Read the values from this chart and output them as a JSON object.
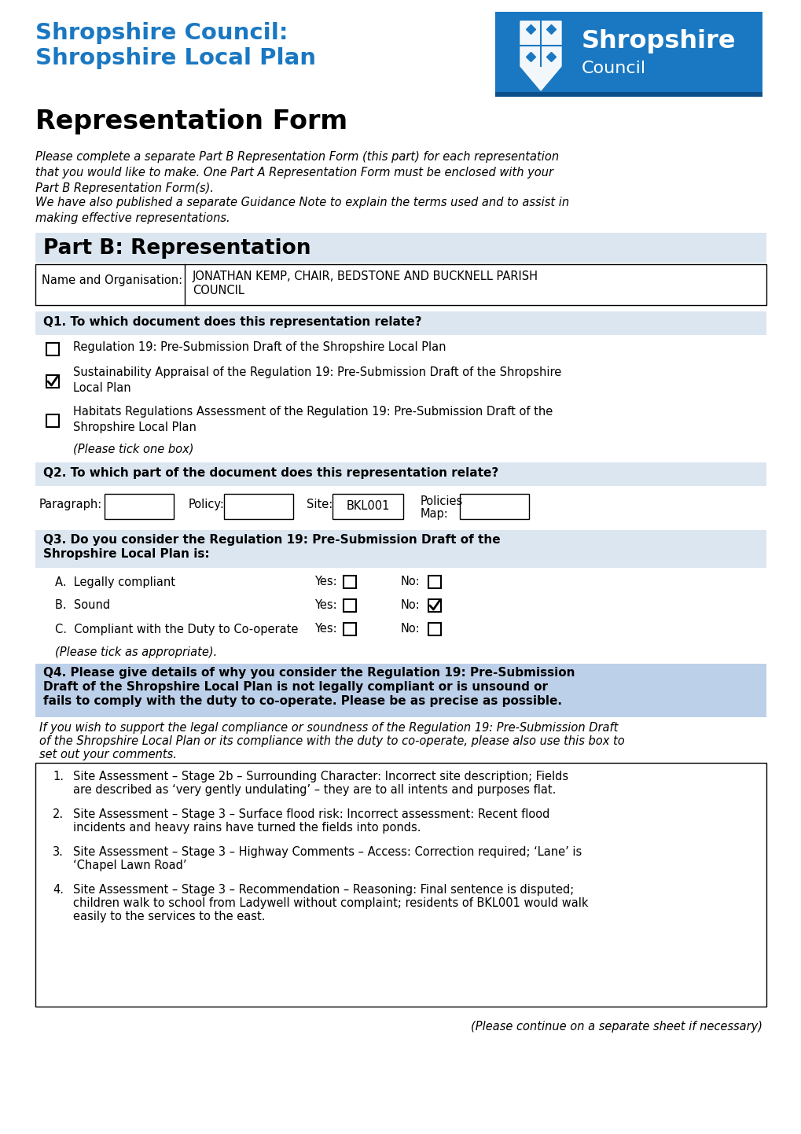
{
  "page_bg": "#ffffff",
  "title_blue": "#1a78c2",
  "section_bg": "#dce6f1",
  "section_bg_q4": "#bdd0e9",
  "text_black": "#000000",
  "title_line1": "Shropshire Council:",
  "title_line2": "Shropshire Local Plan",
  "subtitle": "Representation Form",
  "part_b_label": "Part B: Representation",
  "name_label": "Name and Organisation:",
  "name_value_line1": "JONATHAN KEMP, CHAIR, BEDSTONE AND BUCKNELL PARISH",
  "name_value_line2": "COUNCIL",
  "q1_label": "Q1. To which document does this representation relate?",
  "q1_options": [
    {
      "text": "Regulation 19: Pre-Submission Draft of the Shropshire Local Plan",
      "checked": false,
      "lines": 1
    },
    {
      "text": "Sustainability Appraisal of the Regulation 19: Pre-Submission Draft of the Shropshire\nLocal Plan",
      "checked": true,
      "lines": 2
    },
    {
      "text": "Habitats Regulations Assessment of the Regulation 19: Pre-Submission Draft of the\nShropshire Local Plan",
      "checked": false,
      "lines": 2
    }
  ],
  "q1_note": "(Please tick one box)",
  "q2_label": "Q2. To which part of the document does this representation relate?",
  "q3_label_line1": "Q3. Do you consider the Regulation 19: Pre-Submission Draft of the",
  "q3_label_line2": "Shropshire Local Plan is:",
  "q3_options": [
    {
      "text": "A.  Legally compliant",
      "yes_checked": false,
      "no_checked": false
    },
    {
      "text": "B.  Sound",
      "yes_checked": false,
      "no_checked": true
    },
    {
      "text": "C.  Compliant with the Duty to Co-operate",
      "yes_checked": false,
      "no_checked": false
    }
  ],
  "q3_note": "(Please tick as appropriate).",
  "q4_label_line1": "Q4. Please give details of why you consider the Regulation 19: Pre-Submission",
  "q4_label_line2": "Draft of the Shropshire Local Plan is not legally compliant or is unsound or",
  "q4_label_line3": "fails to comply with the duty to co-operate. Please be as precise as possible.",
  "q4_italic_line1": "If you wish to support the legal compliance or soundness of the Regulation 19: Pre-Submission Draft",
  "q4_italic_line2": "of the Shropshire Local Plan or its compliance with the duty to co-operate, please also use this box to",
  "q4_italic_line3": "set out your comments.",
  "q4_items": [
    {
      "num": "1.",
      "line1": "Site Assessment – Stage 2b – Surrounding Character: Incorrect site description; Fields",
      "line2": "are described as ‘very gently undulating’ – they are to all intents and purposes flat."
    },
    {
      "num": "2.",
      "line1": "Site Assessment – Stage 3 – Surface flood risk: Incorrect assessment: Recent flood",
      "line2": "incidents and heavy rains have turned the fields into ponds."
    },
    {
      "num": "3.",
      "line1": "Site Assessment – Stage 3 – Highway Comments – Access: Correction required; ‘Lane’ is",
      "line2": "‘Chapel Lawn Road’"
    },
    {
      "num": "4.",
      "line1": "Site Assessment – Stage 3 – Recommendation – Reasoning: Final sentence is disputed;",
      "line2": "children walk to school from Ladywell without complaint; residents of BKL001 would walk",
      "line3": "easily to the services to the east."
    }
  ],
  "footer_note": "(Please continue on a separate sheet if necessary)"
}
